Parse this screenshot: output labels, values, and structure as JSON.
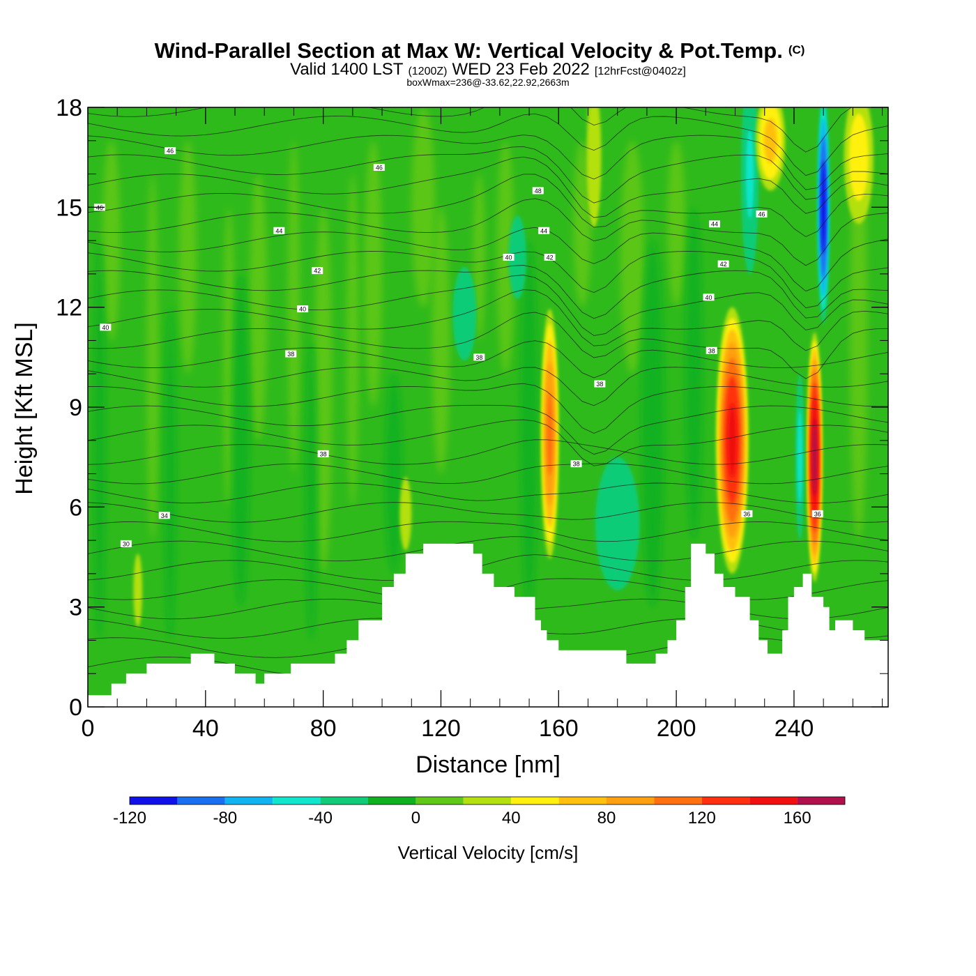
{
  "chart_data": {
    "type": "heatmap",
    "title": "Wind-Parallel Section at Max W: Vertical Velocity & Pot.Temp.",
    "title_mark": "(C)",
    "subtitle_parts": [
      "Valid 1400 LST",
      "(1200Z)",
      "WED 23 Feb 2022",
      "[12hrFcst@0402z]"
    ],
    "subtitle2": "boxWmax=236@-33.62,22.92,2663m",
    "xlabel": "Distance [nm]",
    "ylabel": "Height [Kft MSL]",
    "xlim": [
      0,
      272
    ],
    "ylim": [
      0,
      18
    ],
    "x_ticks": [
      "0",
      "40",
      "80",
      "120",
      "160",
      "200",
      "240"
    ],
    "x_tick_values": [
      0,
      40,
      80,
      120,
      160,
      200,
      240
    ],
    "y_ticks": [
      "0",
      "3",
      "6",
      "9",
      "12",
      "15",
      "18"
    ],
    "y_tick_values": [
      0,
      3,
      6,
      9,
      12,
      15,
      18
    ],
    "colorbar": {
      "label": "Vertical Velocity [cm/s]",
      "bounds": [
        -120,
        -100,
        -80,
        -60,
        -40,
        -20,
        0,
        20,
        40,
        60,
        80,
        100,
        120,
        140,
        160,
        180
      ],
      "colors": [
        "#1010e8",
        "#1a6ef0",
        "#10b4f0",
        "#10e6cc",
        "#10cc78",
        "#10b020",
        "#60c818",
        "#b4e010",
        "#fff010",
        "#ffc010",
        "#ffa010",
        "#ff7010",
        "#ff3010",
        "#f01010",
        "#b0104c"
      ],
      "tick_labels": [
        "-120",
        "-80",
        "-40",
        "0",
        "40",
        "80",
        "120",
        "160"
      ],
      "tick_values": [
        -120,
        -80,
        -40,
        0,
        40,
        80,
        120,
        160
      ]
    },
    "terrain_kft": [
      [
        0,
        0.35
      ],
      [
        8,
        0.35
      ],
      [
        8,
        0.7
      ],
      [
        13,
        0.7
      ],
      [
        13,
        1.0
      ],
      [
        20,
        1.0
      ],
      [
        20,
        1.3
      ],
      [
        35,
        1.3
      ],
      [
        35,
        1.6
      ],
      [
        43,
        1.6
      ],
      [
        43,
        1.3
      ],
      [
        50,
        1.3
      ],
      [
        50,
        1.0
      ],
      [
        57,
        1.0
      ],
      [
        57,
        0.7
      ],
      [
        60,
        0.7
      ],
      [
        60,
        1.0
      ],
      [
        69,
        1.0
      ],
      [
        69,
        1.3
      ],
      [
        84,
        1.3
      ],
      [
        84,
        1.6
      ],
      [
        88,
        1.6
      ],
      [
        88,
        2.0
      ],
      [
        92,
        2.0
      ],
      [
        92,
        2.6
      ],
      [
        100,
        2.6
      ],
      [
        100,
        3.6
      ],
      [
        104,
        3.6
      ],
      [
        104,
        4.0
      ],
      [
        108,
        4.0
      ],
      [
        108,
        4.6
      ],
      [
        114,
        4.6
      ],
      [
        114,
        4.9
      ],
      [
        131,
        4.9
      ],
      [
        131,
        4.6
      ],
      [
        134,
        4.6
      ],
      [
        134,
        4.0
      ],
      [
        138,
        4.0
      ],
      [
        138,
        3.6
      ],
      [
        145,
        3.6
      ],
      [
        145,
        3.3
      ],
      [
        152,
        3.3
      ],
      [
        152,
        2.6
      ],
      [
        154,
        2.6
      ],
      [
        154,
        2.3
      ],
      [
        156,
        2.3
      ],
      [
        156,
        2.0
      ],
      [
        160,
        2.0
      ],
      [
        160,
        1.7
      ],
      [
        183,
        1.7
      ],
      [
        183,
        1.3
      ],
      [
        193,
        1.3
      ],
      [
        193,
        1.6
      ],
      [
        197,
        1.6
      ],
      [
        197,
        2.0
      ],
      [
        200,
        2.0
      ],
      [
        200,
        2.6
      ],
      [
        203,
        2.6
      ],
      [
        203,
        3.6
      ],
      [
        205,
        3.6
      ],
      [
        205,
        4.9
      ],
      [
        210,
        4.9
      ],
      [
        210,
        4.6
      ],
      [
        213,
        4.6
      ],
      [
        213,
        4.0
      ],
      [
        216,
        4.0
      ],
      [
        216,
        3.6
      ],
      [
        220,
        3.6
      ],
      [
        220,
        3.3
      ],
      [
        225,
        3.3
      ],
      [
        225,
        2.6
      ],
      [
        228,
        2.6
      ],
      [
        228,
        2.0
      ],
      [
        231,
        2.0
      ],
      [
        231,
        1.6
      ],
      [
        236,
        1.6
      ],
      [
        236,
        2.3
      ],
      [
        238,
        2.3
      ],
      [
        238,
        3.3
      ],
      [
        240,
        3.3
      ],
      [
        240,
        3.6
      ],
      [
        243,
        3.6
      ],
      [
        243,
        4.0
      ],
      [
        246,
        4.0
      ],
      [
        246,
        3.3
      ],
      [
        250,
        3.3
      ],
      [
        250,
        3.0
      ],
      [
        252,
        3.0
      ],
      [
        252,
        2.3
      ],
      [
        254,
        2.3
      ],
      [
        254,
        2.6
      ],
      [
        260,
        2.6
      ],
      [
        260,
        2.3
      ],
      [
        264,
        2.3
      ],
      [
        264,
        2.0
      ],
      [
        272,
        2.0
      ]
    ],
    "updrafts": [
      {
        "x": 157,
        "y": 8.2,
        "w": 6,
        "h": 7.5,
        "peak_cms": 110
      },
      {
        "x": 219,
        "y": 8.0,
        "w": 11,
        "h": 8.0,
        "peak_cms": 150
      },
      {
        "x": 247,
        "y": 7.5,
        "w": 5,
        "h": 7.5,
        "peak_cms": 175
      },
      {
        "x": 108,
        "y": 5.8,
        "w": 4,
        "h": 2.2,
        "peak_cms": 40
      },
      {
        "x": 17,
        "y": 3.5,
        "w": 3,
        "h": 2.2,
        "peak_cms": 40
      },
      {
        "x": 172,
        "y": 16.5,
        "w": 5,
        "h": 4.2,
        "peak_cms": 40
      },
      {
        "x": 232,
        "y": 17.0,
        "w": 10,
        "h": 3.0,
        "peak_cms": 70
      },
      {
        "x": 262,
        "y": 16.5,
        "w": 10,
        "h": 4.0,
        "peak_cms": 55
      }
    ],
    "downdrafts": [
      {
        "x": 250,
        "y": 15.0,
        "w": 4,
        "h": 7.0,
        "min_cms": -115
      },
      {
        "x": 242,
        "y": 7.5,
        "w": 3,
        "h": 5.0,
        "min_cms": -50
      },
      {
        "x": 225,
        "y": 16.0,
        "w": 6,
        "h": 6.0,
        "min_cms": -45
      },
      {
        "x": 180,
        "y": 5.5,
        "w": 15,
        "h": 4.0,
        "min_cms": -30
      },
      {
        "x": 128,
        "y": 11.8,
        "w": 8,
        "h": 2.8,
        "min_cms": -30
      },
      {
        "x": 146,
        "y": 13.5,
        "w": 6,
        "h": 2.5,
        "min_cms": -40
      }
    ],
    "theta_contour_labels": [
      {
        "text": "46",
        "x": 28,
        "y": 16.7
      },
      {
        "text": "46",
        "x": 99,
        "y": 16.2
      },
      {
        "text": "46",
        "x": 4,
        "y": 15.0
      },
      {
        "text": "44",
        "x": 65,
        "y": 14.3
      },
      {
        "text": "42",
        "x": 78,
        "y": 13.1
      },
      {
        "text": "40",
        "x": 73,
        "y": 11.95
      },
      {
        "text": "40",
        "x": 6,
        "y": 11.4
      },
      {
        "text": "38",
        "x": 69,
        "y": 10.6
      },
      {
        "text": "38",
        "x": 133,
        "y": 10.5
      },
      {
        "text": "38",
        "x": 80,
        "y": 7.6
      },
      {
        "text": "34",
        "x": 26,
        "y": 5.75
      },
      {
        "text": "30",
        "x": 13,
        "y": 4.9
      },
      {
        "text": "48",
        "x": 153,
        "y": 15.5
      },
      {
        "text": "44",
        "x": 155,
        "y": 14.3
      },
      {
        "text": "40",
        "x": 143,
        "y": 13.5
      },
      {
        "text": "42",
        "x": 157,
        "y": 13.5
      },
      {
        "text": "38",
        "x": 174,
        "y": 9.7
      },
      {
        "text": "38",
        "x": 166,
        "y": 7.3
      },
      {
        "text": "46",
        "x": 229,
        "y": 14.8
      },
      {
        "text": "44",
        "x": 213,
        "y": 14.5
      },
      {
        "text": "42",
        "x": 216,
        "y": 13.3
      },
      {
        "text": "40",
        "x": 211,
        "y": 12.3
      },
      {
        "text": "38",
        "x": 212,
        "y": 10.7
      },
      {
        "text": "36",
        "x": 224,
        "y": 5.8
      },
      {
        "text": "36",
        "x": 248,
        "y": 5.8
      }
    ]
  }
}
